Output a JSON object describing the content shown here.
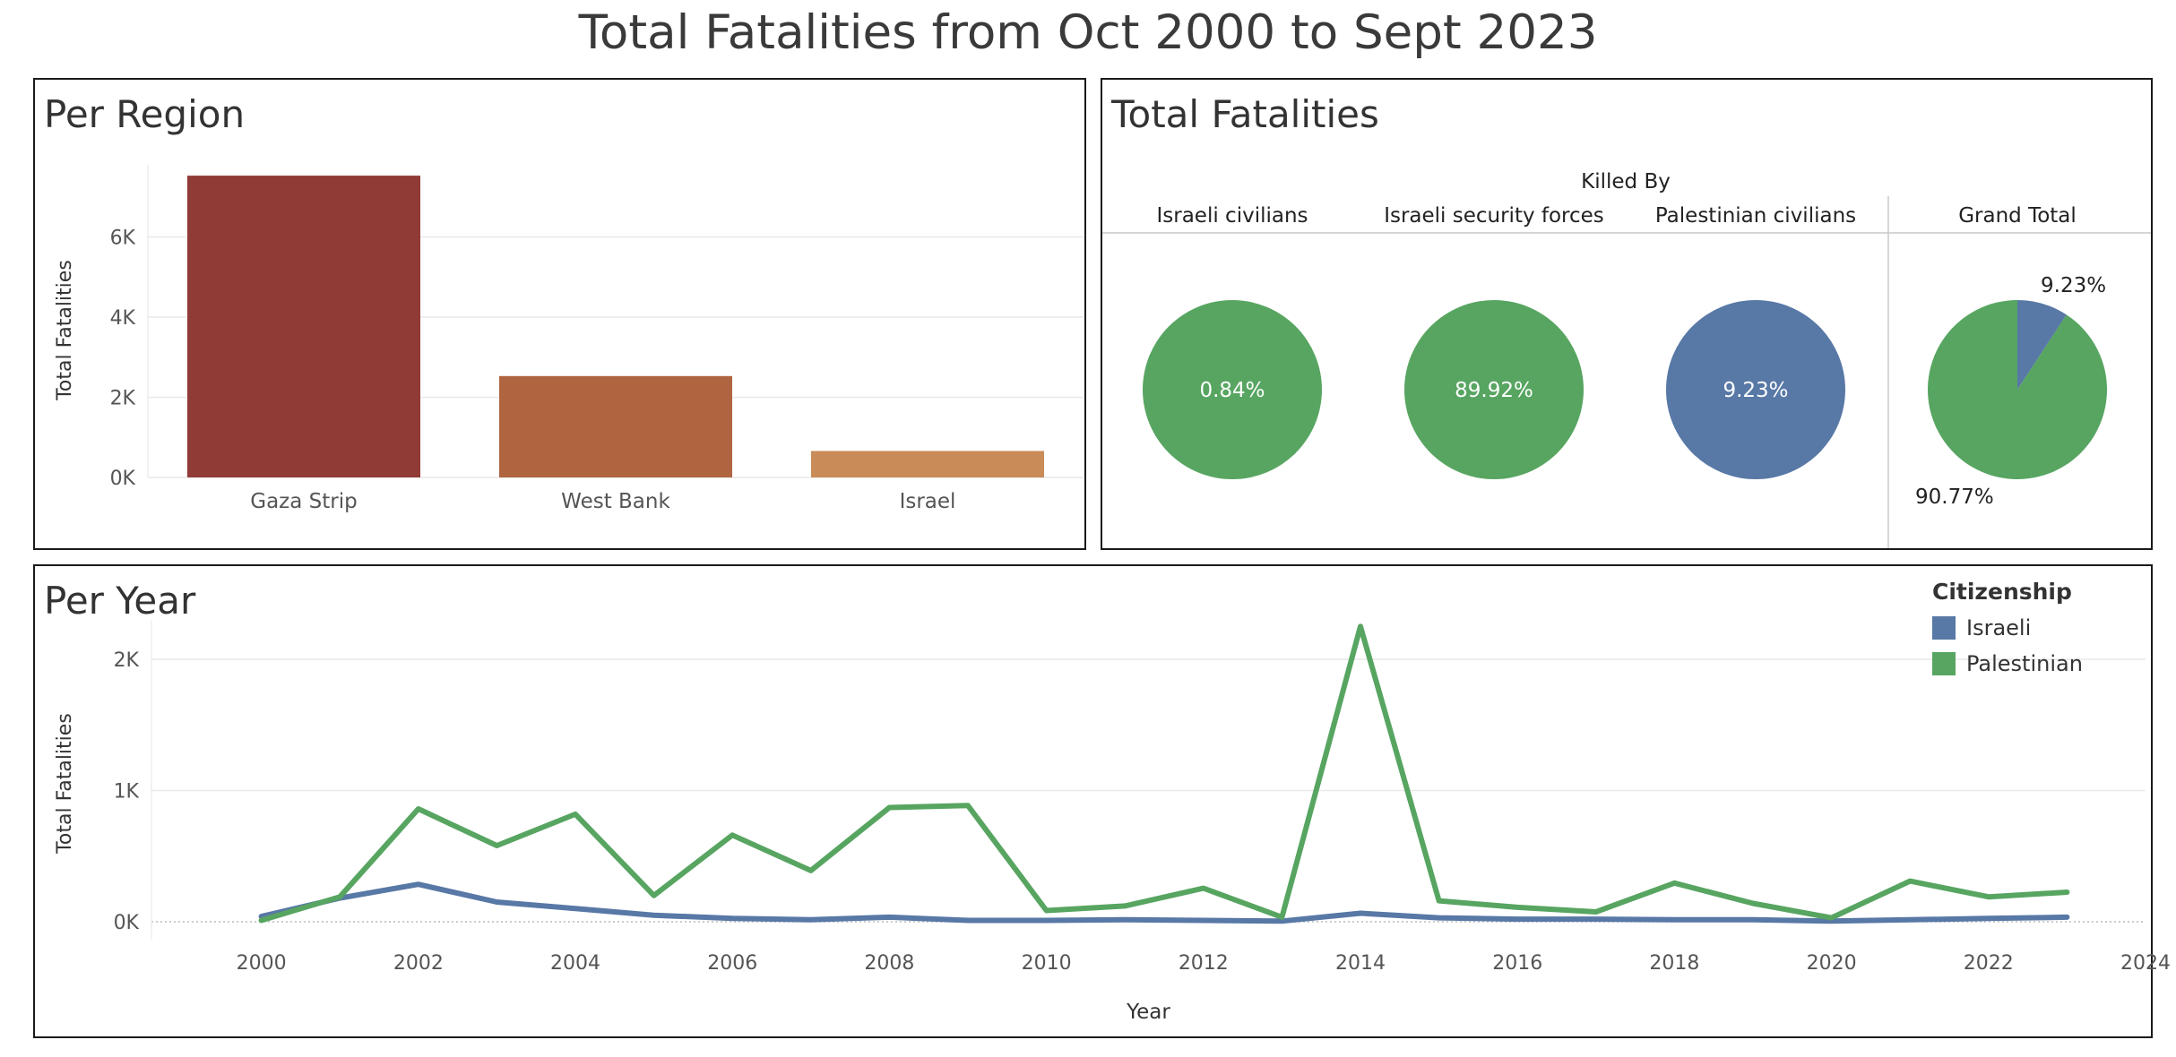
{
  "title": "Total Fatalities from Oct 2000 to Sept 2023",
  "colors": {
    "gaza": "#913b36",
    "westbank": "#b06541",
    "israel": "#c98b58",
    "israeli": "#5878a6",
    "palestinian": "#57a561",
    "grid": "#e9e9e9",
    "text": "#555555"
  },
  "chart_data": [
    {
      "id": "per-region",
      "type": "bar",
      "title": "Per Region",
      "xlabel": "",
      "ylabel": "Total Fatalities",
      "categories": [
        "Gaza Strip",
        "West Bank",
        "Israel"
      ],
      "values": [
        7530,
        2530,
        660
      ],
      "ylim": [
        0,
        7800
      ],
      "yticks": [
        0,
        2000,
        4000,
        6000
      ],
      "yticklabels": [
        "0K",
        "2K",
        "4K",
        "6K"
      ],
      "grid": true
    },
    {
      "id": "total-fatalities",
      "type": "pie",
      "title": "Total Fatalities",
      "header": "Killed By",
      "columns": [
        {
          "label": "Israeli civilians",
          "slices": [
            {
              "series": "Palestinian",
              "value": 100
            }
          ],
          "label_text": "0.84%"
        },
        {
          "label": "Israeli security forces",
          "slices": [
            {
              "series": "Palestinian",
              "value": 100
            }
          ],
          "label_text": "89.92%"
        },
        {
          "label": "Palestinian civilians",
          "slices": [
            {
              "series": "Israeli",
              "value": 100
            }
          ],
          "label_text": "9.23%"
        }
      ],
      "grand_total": {
        "label": "Grand Total",
        "slices": [
          {
            "series": "Israeli",
            "value": 9.23,
            "label_text": "9.23%"
          },
          {
            "series": "Palestinian",
            "value": 90.77,
            "label_text": "90.77%"
          }
        ]
      }
    },
    {
      "id": "per-year",
      "type": "line",
      "title": "Per Year",
      "xlabel": "Year",
      "ylabel": "Total Fatalities",
      "xlim": [
        1998.6,
        2024
      ],
      "ylim": [
        0,
        2300
      ],
      "xticks": [
        2000,
        2002,
        2004,
        2006,
        2008,
        2010,
        2012,
        2014,
        2016,
        2018,
        2020,
        2022,
        2024
      ],
      "yticks": [
        0,
        1000,
        2000
      ],
      "yticklabels": [
        "0K",
        "1K",
        "2K"
      ],
      "legend_title": "Citizenship",
      "legend_position": "top-right",
      "x": [
        2000,
        2001,
        2002,
        2003,
        2004,
        2005,
        2006,
        2007,
        2008,
        2009,
        2010,
        2011,
        2012,
        2013,
        2014,
        2015,
        2016,
        2017,
        2018,
        2019,
        2020,
        2021,
        2022,
        2023
      ],
      "series": [
        {
          "name": "Israeli",
          "values": [
            40,
            180,
            285,
            150,
            100,
            50,
            25,
            15,
            35,
            10,
            10,
            15,
            10,
            5,
            65,
            30,
            20,
            20,
            15,
            15,
            5,
            15,
            25,
            35
          ]
        },
        {
          "name": "Palestinian",
          "values": [
            10,
            190,
            860,
            580,
            820,
            200,
            660,
            390,
            870,
            885,
            85,
            120,
            255,
            35,
            2250,
            160,
            110,
            75,
            295,
            140,
            30,
            310,
            190,
            225
          ]
        }
      ]
    }
  ]
}
